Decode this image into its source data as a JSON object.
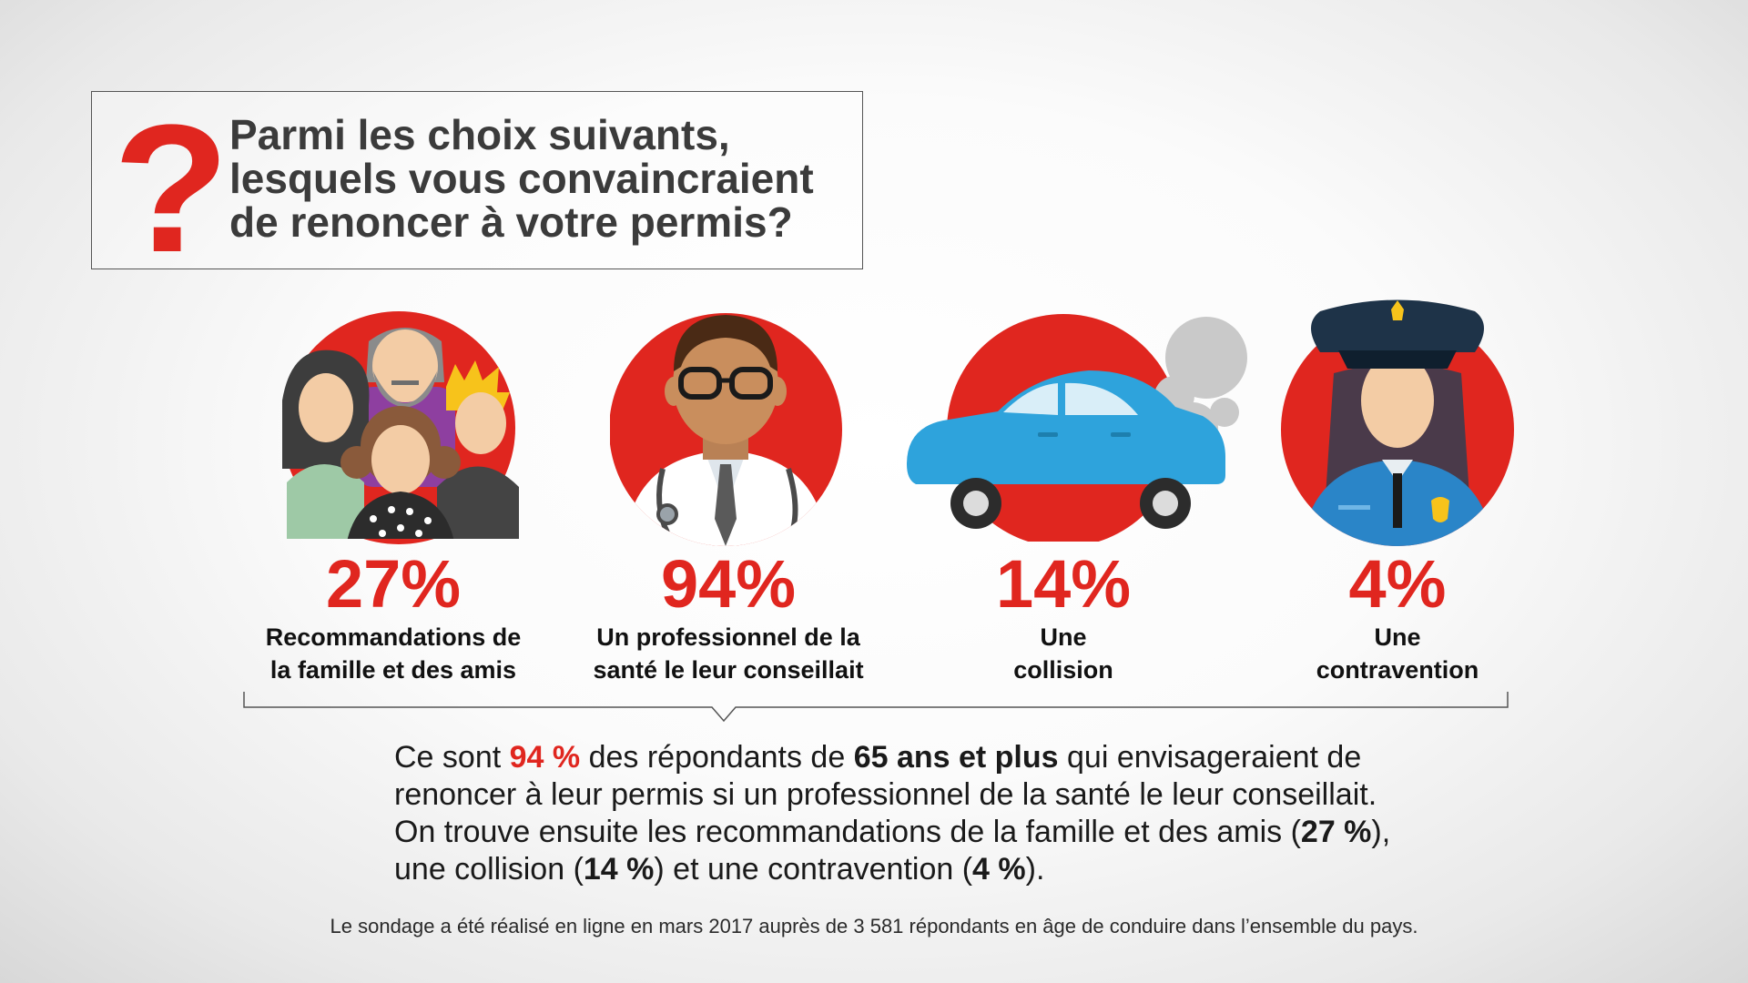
{
  "question": {
    "mark": "?",
    "lines": [
      "Parmi les choix suivants,",
      "lesquels vous convaincraient",
      "de renoncer à votre permis?"
    ]
  },
  "chart_data": {
    "type": "bar",
    "title": "Parmi les choix suivants, lesquels vous convaincraient de renoncer à votre permis?",
    "categories": [
      "Recommandations de la famille et des amis",
      "Un professionnel de la santé le leur conseillait",
      "Une collision",
      "Une contravention"
    ],
    "values": [
      27,
      94,
      14,
      4
    ],
    "unit": "%",
    "xlabel": "",
    "ylabel": "",
    "ylim": [
      0,
      100
    ]
  },
  "items": [
    {
      "icon": "family-icon",
      "pct": "27%",
      "line1": "Recommandations de",
      "line2": "la famille et des amis"
    },
    {
      "icon": "doctor-icon",
      "pct": "94%",
      "line1": "Un professionnel de la",
      "line2": "santé le leur conseillait"
    },
    {
      "icon": "car-collision-icon",
      "pct": "14%",
      "line1": "Une",
      "line2": "collision"
    },
    {
      "icon": "police-officer-icon",
      "pct": "4%",
      "line1": "Une",
      "line2": "contravention"
    }
  ],
  "summary": {
    "s1": "Ce sont ",
    "s2": "94 %",
    "s3": " des répondants de ",
    "s4": "65 ans et plus",
    "s5": " qui envisageraient de renoncer à leur permis si un professionnel de la santé le leur conseillait. On trouve ensuite les recommandations de la famille et des amis (",
    "s6": "27 %",
    "s7": "), une collision (",
    "s8": "14 %",
    "s9": ") et une contravention (",
    "s10": "4 %",
    "s11": ")."
  },
  "footnote": "Le sondage a été réalisé en ligne en mars 2017 auprès de 3 581 répondants en âge de conduire dans l’ensemble du pays.",
  "colors": {
    "accent": "#e0261f",
    "car": "#2ea3dc",
    "navy": "#1e3348"
  }
}
